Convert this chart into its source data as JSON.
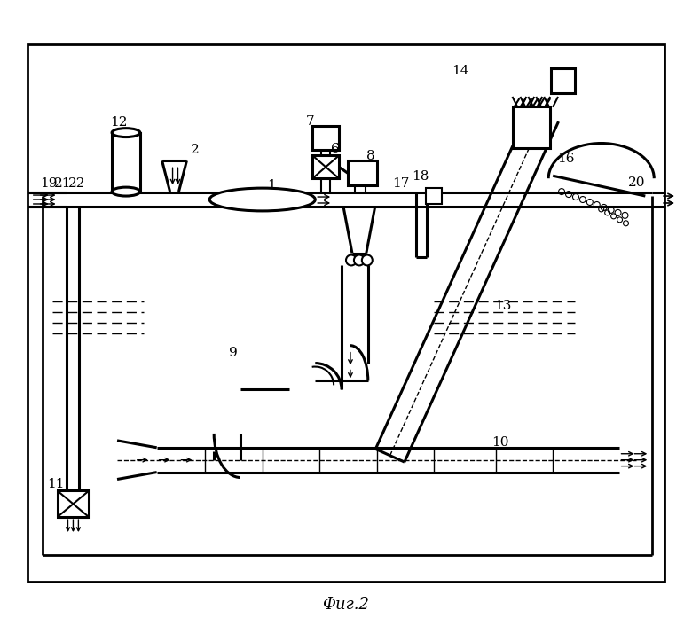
{
  "title": "Фиг.2",
  "bg_color": "#ffffff",
  "line_color": "#000000",
  "figsize": [
    7.8,
    7.06
  ],
  "dpi": 100
}
